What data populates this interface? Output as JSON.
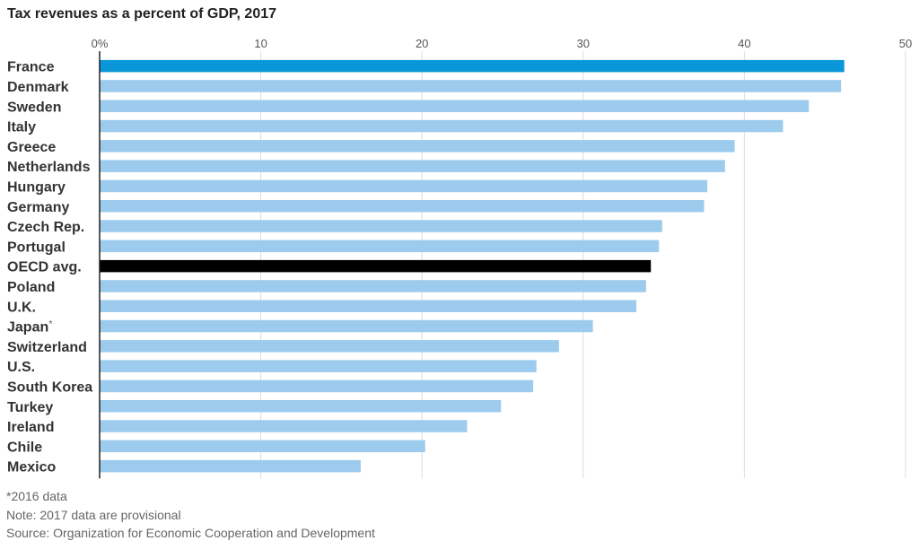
{
  "chart_data": {
    "type": "bar",
    "orientation": "horizontal",
    "title": "Tax revenues as a percent of GDP, 2017",
    "xlim": [
      0,
      50
    ],
    "x_ticks": [
      "0%",
      "10",
      "20",
      "30",
      "40",
      "50"
    ],
    "categories": [
      "France",
      "Denmark",
      "Sweden",
      "Italy",
      "Greece",
      "Netherlands",
      "Hungary",
      "Germany",
      "Czech Rep.",
      "Portugal",
      "OECD avg.",
      "Poland",
      "U.K.",
      "Japan*",
      "Switzerland",
      "U.S.",
      "South Korea",
      "Turkey",
      "Ireland",
      "Chile",
      "Mexico"
    ],
    "values": [
      46.2,
      46.0,
      44.0,
      42.4,
      39.4,
      38.8,
      37.7,
      37.5,
      34.9,
      34.7,
      34.2,
      33.9,
      33.3,
      30.6,
      28.5,
      27.1,
      26.9,
      24.9,
      22.8,
      20.2,
      16.2
    ],
    "highlight": {
      "France": "#0a97d9",
      "OECD avg.": "#000000"
    },
    "bar_color": "#9ccbed",
    "grid": true
  },
  "footnotes": {
    "asterisk": "*2016 data",
    "note": "Note: 2017 data are provisional",
    "source": "Source: Organization for Economic Cooperation and Development"
  }
}
